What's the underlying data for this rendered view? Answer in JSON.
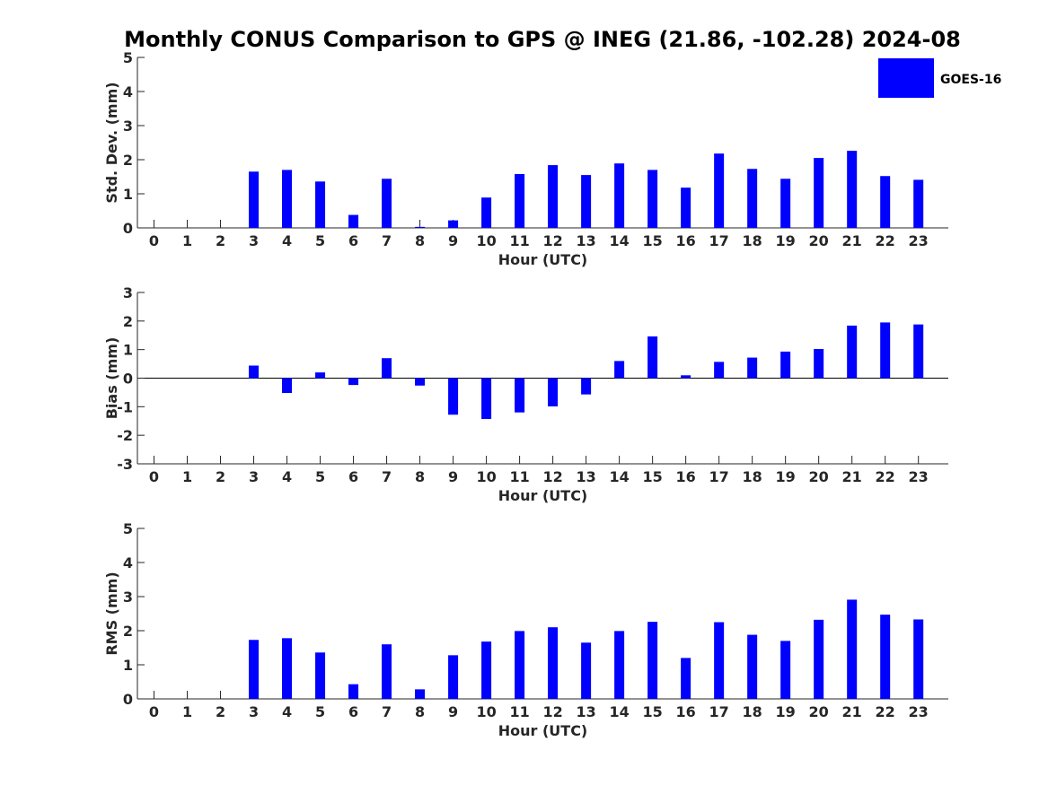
{
  "title": "Monthly CONUS Comparison to GPS @ INEG (21.86, -102.28) 2024-08",
  "legend": {
    "label": "GOES-16",
    "color": "#0000ff",
    "placement": "top-right"
  },
  "chart_data": [
    {
      "type": "bar",
      "xlabel": "Hour (UTC)",
      "ylabel": "Std. Dev. (mm)",
      "ylim": [
        0,
        5
      ],
      "yticks": [
        0,
        1,
        2,
        3,
        4,
        5
      ],
      "categories": [
        0,
        1,
        2,
        3,
        4,
        5,
        6,
        7,
        8,
        9,
        10,
        11,
        12,
        13,
        14,
        15,
        16,
        17,
        18,
        19,
        20,
        21,
        22,
        23
      ],
      "series": [
        {
          "name": "GOES-16",
          "color": "#0000ff",
          "values": [
            null,
            null,
            null,
            1.65,
            1.7,
            1.36,
            0.38,
            1.44,
            0.03,
            0.22,
            0.89,
            1.58,
            1.84,
            1.55,
            1.89,
            1.7,
            1.18,
            2.18,
            1.73,
            1.44,
            2.05,
            2.26,
            1.52,
            1.41
          ]
        }
      ],
      "grid": false
    },
    {
      "type": "bar",
      "xlabel": "Hour (UTC)",
      "ylabel": "Bias (mm)",
      "ylim": [
        -3,
        3
      ],
      "yticks": [
        -3,
        -2,
        -1,
        0,
        1,
        2,
        3
      ],
      "categories": [
        0,
        1,
        2,
        3,
        4,
        5,
        6,
        7,
        8,
        9,
        10,
        11,
        12,
        13,
        14,
        15,
        16,
        17,
        18,
        19,
        20,
        21,
        22,
        23
      ],
      "series": [
        {
          "name": "GOES-16",
          "color": "#0000ff",
          "values": [
            null,
            null,
            null,
            0.44,
            -0.52,
            0.2,
            -0.24,
            0.7,
            -0.26,
            -1.28,
            -1.43,
            -1.2,
            -0.99,
            -0.57,
            0.6,
            1.46,
            0.1,
            0.57,
            0.72,
            0.93,
            1.02,
            1.84,
            1.95,
            1.88
          ]
        }
      ],
      "grid": false
    },
    {
      "type": "bar",
      "xlabel": "Hour (UTC)",
      "ylabel": "RMS (mm)",
      "ylim": [
        0,
        5
      ],
      "yticks": [
        0,
        1,
        2,
        3,
        4,
        5
      ],
      "categories": [
        0,
        1,
        2,
        3,
        4,
        5,
        6,
        7,
        8,
        9,
        10,
        11,
        12,
        13,
        14,
        15,
        16,
        17,
        18,
        19,
        20,
        21,
        22,
        23
      ],
      "series": [
        {
          "name": "GOES-16",
          "color": "#0000ff",
          "values": [
            null,
            null,
            null,
            1.73,
            1.78,
            1.36,
            0.43,
            1.6,
            0.28,
            1.28,
            1.68,
            1.99,
            2.1,
            1.65,
            1.99,
            2.26,
            1.2,
            2.25,
            1.88,
            1.7,
            2.32,
            2.91,
            2.47,
            2.33
          ]
        }
      ],
      "grid": false
    }
  ]
}
